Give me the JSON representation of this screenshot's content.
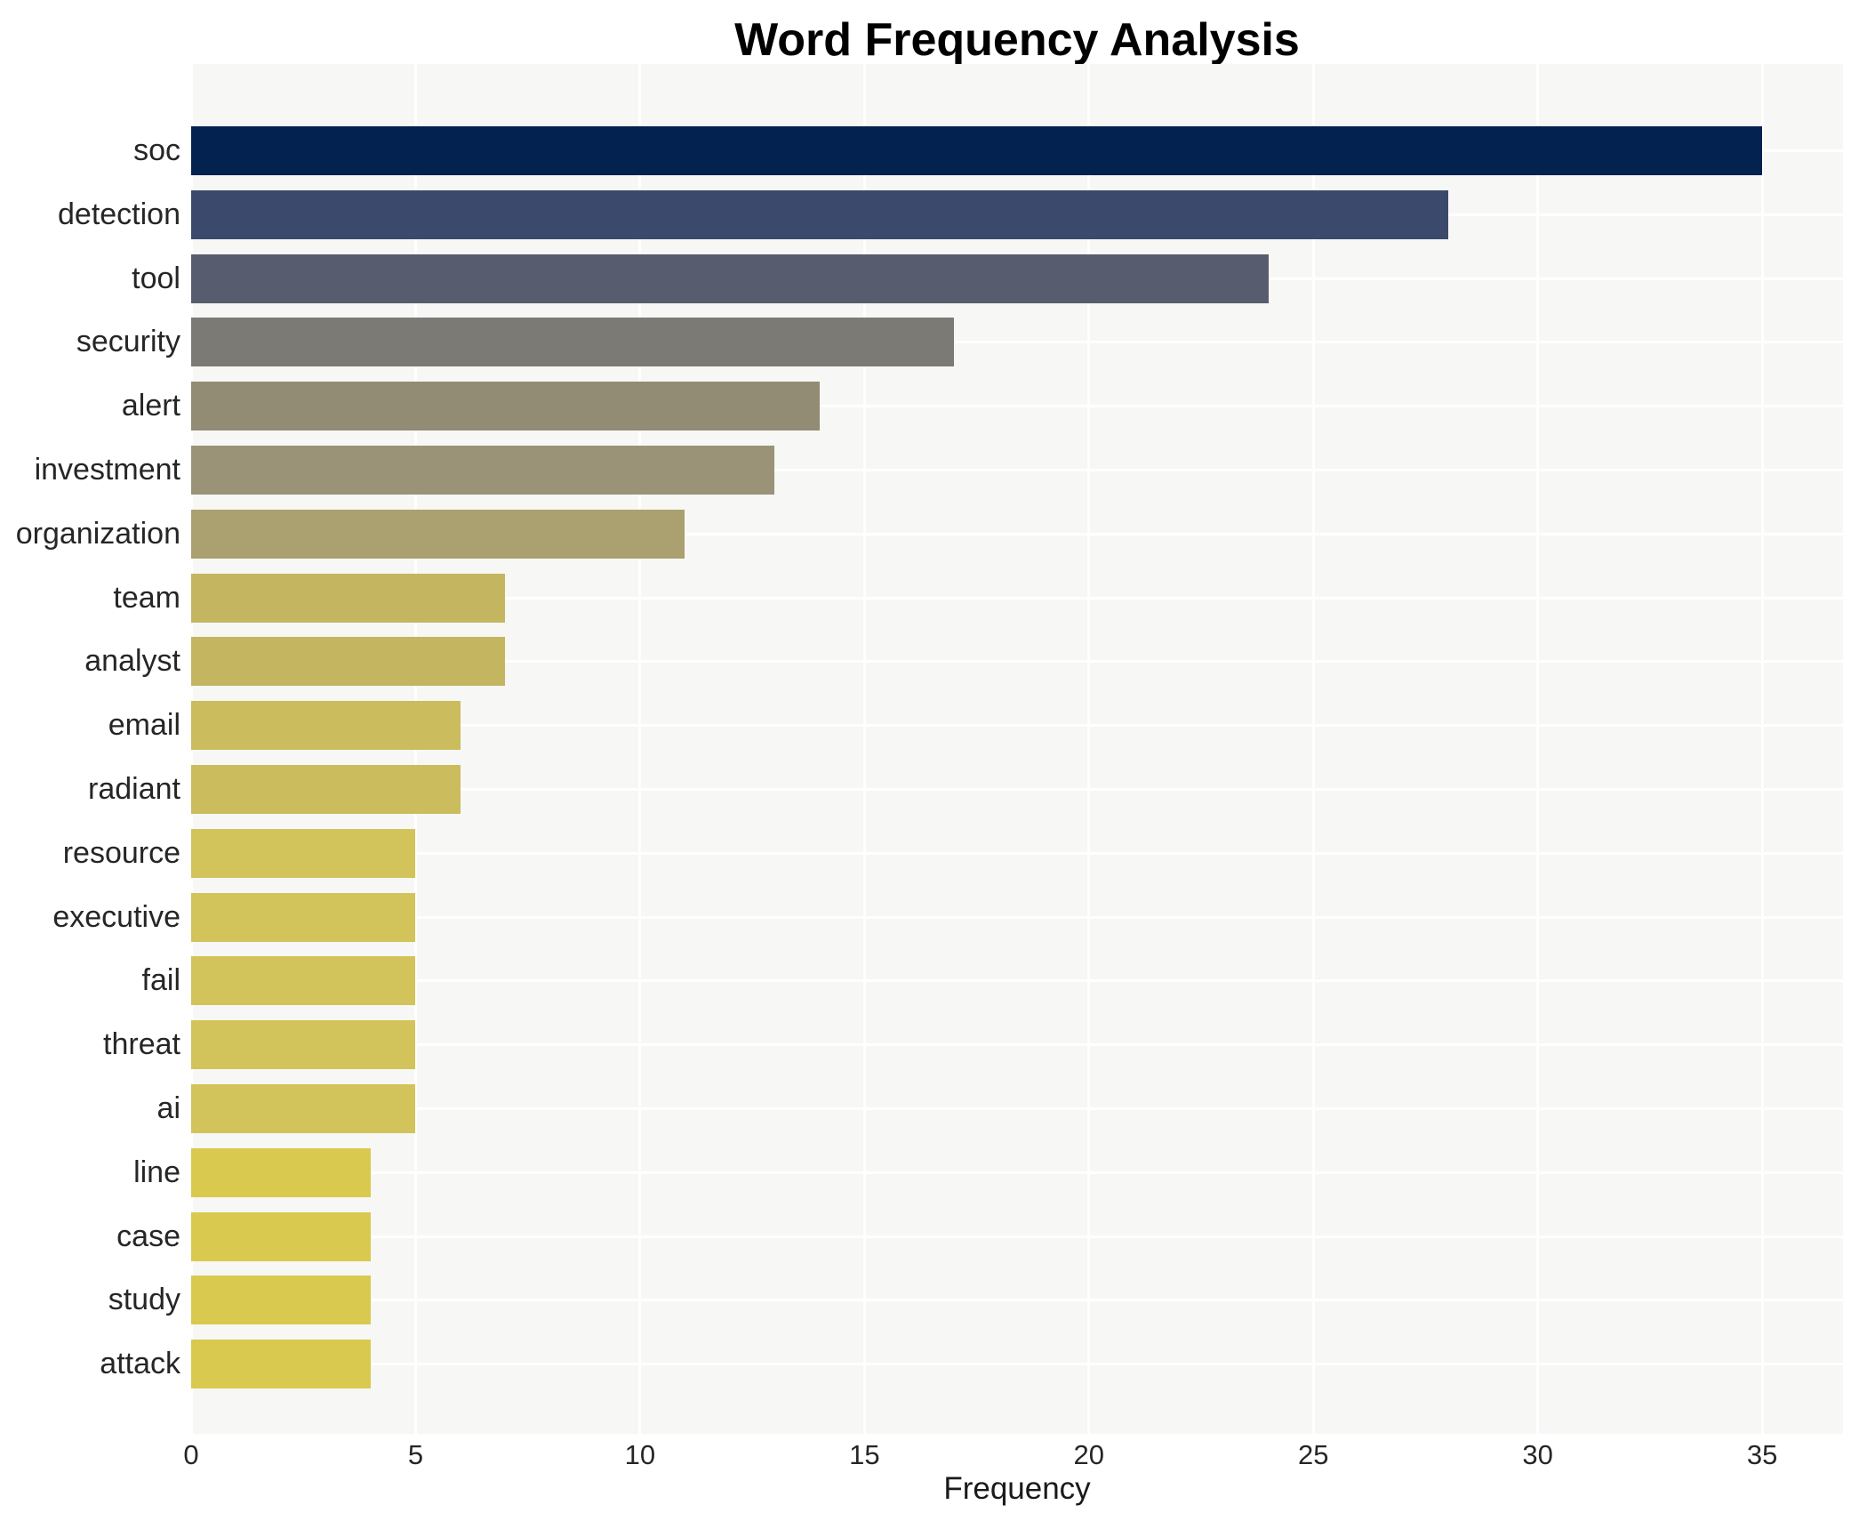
{
  "chart_data": {
    "type": "bar",
    "orientation": "horizontal",
    "title": "Word Frequency Analysis",
    "xlabel": "Frequency",
    "ylabel": "",
    "categories": [
      "soc",
      "detection",
      "tool",
      "security",
      "alert",
      "investment",
      "organization",
      "team",
      "analyst",
      "email",
      "radiant",
      "resource",
      "executive",
      "fail",
      "threat",
      "ai",
      "line",
      "case",
      "study",
      "attack"
    ],
    "values": [
      35,
      28,
      24,
      17,
      14,
      13,
      11,
      7,
      7,
      6,
      6,
      5,
      5,
      5,
      5,
      5,
      4,
      4,
      4,
      4
    ],
    "bar_colors": [
      "#032250",
      "#3b4a6c",
      "#575d6e",
      "#7b7a74",
      "#928c75",
      "#9a9377",
      "#aba06f",
      "#c4b560",
      "#c4b560",
      "#cbbc5d",
      "#cbbc5d",
      "#d2c35b",
      "#d2c35b",
      "#d2c35b",
      "#d2c35b",
      "#d2c35b",
      "#d9c94f",
      "#d9c94f",
      "#d9c94f",
      "#d9c94f"
    ],
    "x_ticks": [
      0,
      5,
      10,
      15,
      20,
      25,
      30,
      35
    ],
    "xlim": [
      0,
      36.8
    ],
    "grid": true,
    "legend": "none",
    "plot_background": "#f7f7f5",
    "grid_color": "#ffffff"
  }
}
